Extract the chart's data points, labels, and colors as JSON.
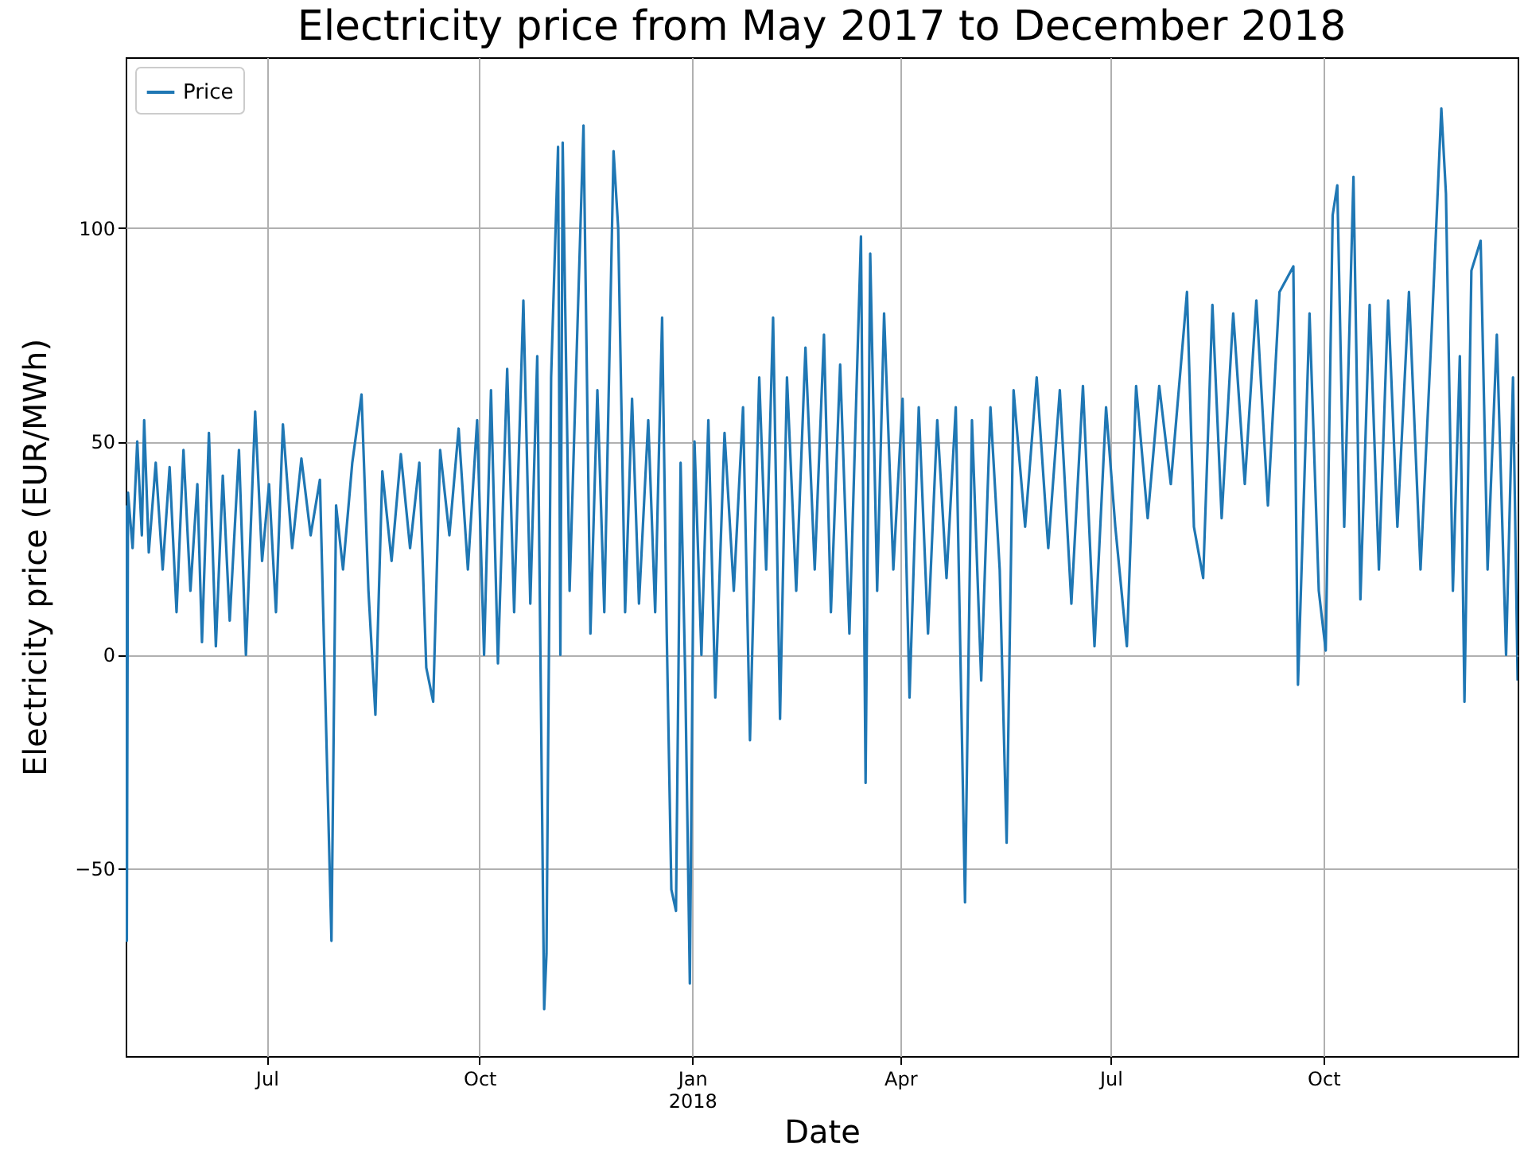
{
  "chart_data": {
    "type": "line",
    "title": "Electricity price from May 2017 to December 2018",
    "xlabel": "Date",
    "ylabel": "Electricity price (EUR/MWh)",
    "xlim": [
      "2017-05-01",
      "2018-12-24"
    ],
    "ylim": [
      -94,
      140
    ],
    "xticks": [
      {
        "value": "2017-07-01",
        "label": "Jul"
      },
      {
        "value": "2017-10-01",
        "label": "Oct"
      },
      {
        "value": "2018-01-01",
        "label": "Jan\n2018"
      },
      {
        "value": "2018-04-01",
        "label": "Apr"
      },
      {
        "value": "2018-07-01",
        "label": "Jul"
      },
      {
        "value": "2018-10-01",
        "label": "Oct"
      }
    ],
    "yticks": [
      -50,
      0,
      50,
      100
    ],
    "grid": true,
    "legend": "top left",
    "x": [
      "2017-05-01",
      "2017-05-01T12:00",
      "2017-05-02",
      "2017-05-04",
      "2017-05-06",
      "2017-05-08",
      "2017-05-09",
      "2017-05-11",
      "2017-05-14",
      "2017-05-17",
      "2017-05-20",
      "2017-05-23",
      "2017-05-26",
      "2017-05-29",
      "2017-06-01",
      "2017-06-03",
      "2017-06-06",
      "2017-06-09",
      "2017-06-12",
      "2017-06-15",
      "2017-06-19",
      "2017-06-22",
      "2017-06-26",
      "2017-06-29",
      "2017-07-02",
      "2017-07-05",
      "2017-07-08",
      "2017-07-12",
      "2017-07-16",
      "2017-07-20",
      "2017-07-24",
      "2017-07-29",
      "2017-07-31",
      "2017-08-03",
      "2017-08-07",
      "2017-08-11",
      "2017-08-14",
      "2017-08-17",
      "2017-08-20",
      "2017-08-24",
      "2017-08-28",
      "2017-09-01",
      "2017-09-05",
      "2017-09-08",
      "2017-09-11",
      "2017-09-14",
      "2017-09-18",
      "2017-09-22",
      "2017-09-26",
      "2017-09-30",
      "2017-10-03",
      "2017-10-06",
      "2017-10-09",
      "2017-10-13",
      "2017-10-16",
      "2017-10-20",
      "2017-10-23",
      "2017-10-26",
      "2017-10-29",
      "2017-10-30",
      "2017-11-01",
      "2017-11-04",
      "2017-11-05",
      "2017-11-06",
      "2017-11-09",
      "2017-11-12",
      "2017-11-15",
      "2017-11-18",
      "2017-11-21",
      "2017-11-24",
      "2017-11-28",
      "2017-11-30",
      "2017-12-03",
      "2017-12-06",
      "2017-12-09",
      "2017-12-13",
      "2017-12-16",
      "2017-12-19",
      "2017-12-21",
      "2017-12-23",
      "2017-12-25",
      "2017-12-27",
      "2017-12-29",
      "2017-12-31",
      "2018-01-02",
      "2018-01-05",
      "2018-01-08",
      "2018-01-11",
      "2018-01-15",
      "2018-01-19",
      "2018-01-23",
      "2018-01-26",
      "2018-01-30",
      "2018-02-02",
      "2018-02-05",
      "2018-02-08",
      "2018-02-11",
      "2018-02-15",
      "2018-02-19",
      "2018-02-23",
      "2018-02-27",
      "2018-03-02",
      "2018-03-06",
      "2018-03-10",
      "2018-03-15",
      "2018-03-17",
      "2018-03-19",
      "2018-03-22",
      "2018-03-25",
      "2018-03-29",
      "2018-04-02",
      "2018-04-05",
      "2018-04-09",
      "2018-04-13",
      "2018-04-17",
      "2018-04-21",
      "2018-04-25",
      "2018-04-29",
      "2018-05-02",
      "2018-05-06",
      "2018-05-10",
      "2018-05-14",
      "2018-05-17",
      "2018-05-20",
      "2018-05-25",
      "2018-05-30",
      "2018-06-04",
      "2018-06-09",
      "2018-06-14",
      "2018-06-19",
      "2018-06-24",
      "2018-06-29",
      "2018-07-03",
      "2018-07-08",
      "2018-07-12",
      "2018-07-17",
      "2018-07-22",
      "2018-07-27",
      "2018-08-01",
      "2018-08-03",
      "2018-08-06",
      "2018-08-10",
      "2018-08-14",
      "2018-08-18",
      "2018-08-23",
      "2018-08-28",
      "2018-09-02",
      "2018-09-07",
      "2018-09-12",
      "2018-09-18",
      "2018-09-20",
      "2018-09-25",
      "2018-09-29",
      "2018-10-02",
      "2018-10-05",
      "2018-10-07",
      "2018-10-10",
      "2018-10-14",
      "2018-10-17",
      "2018-10-21",
      "2018-10-25",
      "2018-10-29",
      "2018-11-02",
      "2018-11-07",
      "2018-11-12",
      "2018-11-17",
      "2018-11-21",
      "2018-11-23",
      "2018-11-26",
      "2018-11-29",
      "2018-12-01",
      "2018-12-04",
      "2018-12-08",
      "2018-12-11",
      "2018-12-15",
      "2018-12-19",
      "2018-12-22",
      "2018-12-24"
    ],
    "series": [
      {
        "name": "Price",
        "color": "#1f77b4",
        "values": [
          35,
          -67,
          38,
          25,
          50,
          28,
          55,
          24,
          45,
          20,
          44,
          10,
          48,
          15,
          40,
          3,
          52,
          2,
          42,
          8,
          48,
          0,
          57,
          22,
          40,
          10,
          54,
          25,
          46,
          28,
          41,
          -67,
          35,
          20,
          45,
          61,
          15,
          -14,
          43,
          22,
          47,
          25,
          45,
          -3,
          -11,
          48,
          28,
          53,
          20,
          55,
          0,
          62,
          -2,
          67,
          10,
          83,
          12,
          70,
          -83,
          -70,
          65,
          119,
          0,
          120,
          15,
          70,
          124,
          5,
          62,
          10,
          118,
          100,
          10,
          60,
          12,
          55,
          10,
          79,
          5,
          -55,
          -60,
          45,
          -5,
          -77,
          50,
          0,
          55,
          -10,
          52,
          15,
          58,
          -20,
          65,
          20,
          79,
          -15,
          65,
          15,
          72,
          20,
          75,
          10,
          68,
          5,
          98,
          -30,
          94,
          15,
          80,
          20,
          60,
          -10,
          58,
          5,
          55,
          18,
          58,
          -58,
          55,
          -6,
          58,
          20,
          -44,
          62,
          30,
          65,
          25,
          62,
          12,
          63,
          2,
          58,
          30,
          2,
          63,
          32,
          63,
          40,
          72,
          85,
          30,
          18,
          82,
          32,
          80,
          40,
          83,
          35,
          85,
          91,
          -7,
          80,
          15,
          1,
          103,
          110,
          30,
          112,
          13,
          82,
          20,
          83,
          30,
          85,
          20,
          78,
          128,
          108,
          15,
          70,
          -11,
          90,
          97,
          20,
          75,
          0,
          65,
          -6
        ]
      }
    ]
  }
}
